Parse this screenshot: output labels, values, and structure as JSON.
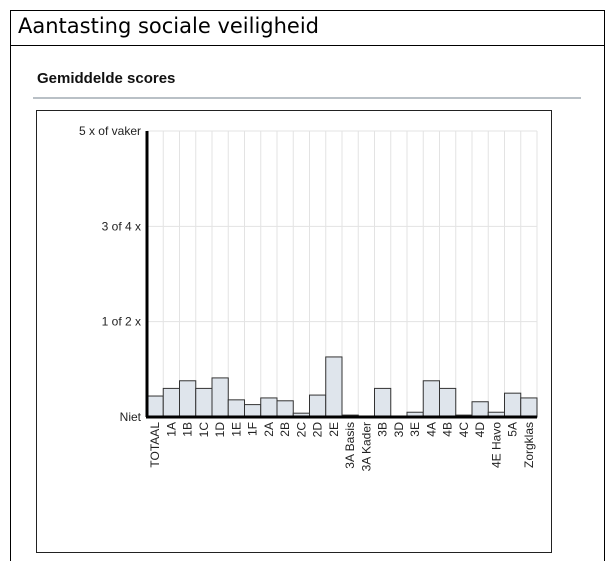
{
  "document": {
    "title": "Aantasting sociale veiligheid"
  },
  "section": {
    "title": "Gemiddelde scores"
  },
  "chart_data": {
    "type": "bar",
    "title": "",
    "xlabel": "",
    "ylabel": "",
    "ylim": [
      0,
      3
    ],
    "y_ticks": [
      {
        "value": 0,
        "label": "Niet"
      },
      {
        "value": 1,
        "label": "1 of 2 x"
      },
      {
        "value": 2,
        "label": "3 of 4 x"
      },
      {
        "value": 3,
        "label": "5 x of vaker"
      }
    ],
    "grid": true,
    "categories": [
      "TOTAAL",
      "1A",
      "1B",
      "1C",
      "1D",
      "1E",
      "1F",
      "2A",
      "2B",
      "2C",
      "2D",
      "2E",
      "3A Basis",
      "3A Kader",
      "3B",
      "3D",
      "3E",
      "4A",
      "4B",
      "4C",
      "4D",
      "4E Havo",
      "5A",
      "Zorgklas"
    ],
    "values": [
      0.22,
      0.3,
      0.38,
      0.3,
      0.41,
      0.18,
      0.13,
      0.2,
      0.17,
      0.04,
      0.23,
      0.63,
      0.02,
      0.01,
      0.3,
      0.01,
      0.05,
      0.38,
      0.3,
      0.02,
      0.16,
      0.05,
      0.25,
      0.2
    ],
    "colors": {
      "bar_fill": "#dfe5ec",
      "bar_stroke": "#333333",
      "axis": "#000000",
      "grid": "#e3e3e3"
    }
  }
}
